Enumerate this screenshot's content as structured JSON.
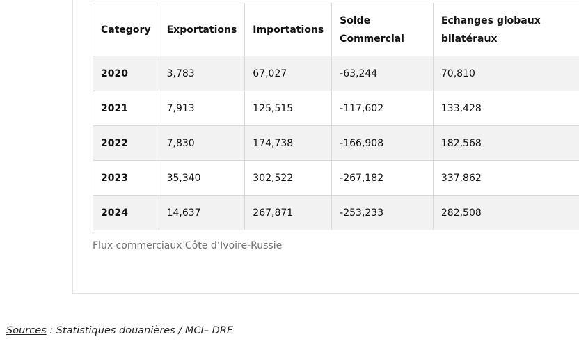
{
  "table": {
    "headers": {
      "category": "Category",
      "exports": "Exportations",
      "imports": "Importations",
      "balance_line1": "Solde",
      "balance_line2": "Commercial",
      "total_line1": "Echanges globaux",
      "total_line2": "bilatéraux"
    },
    "rows": [
      {
        "year": "2020",
        "exports": "3,783",
        "imports": "67,027",
        "balance": "-63,244",
        "total": "70,810"
      },
      {
        "year": "2021",
        "exports": "7,913",
        "imports": "125,515",
        "balance": "-117,602",
        "total": "133,428"
      },
      {
        "year": "2022",
        "exports": "7,830",
        "imports": "174,738",
        "balance": "-166,908",
        "total": "182,568"
      },
      {
        "year": "2023",
        "exports": "35,340",
        "imports": "302,522",
        "balance": "-267,182",
        "total": "337,862"
      },
      {
        "year": "2024",
        "exports": "14,637",
        "imports": "267,871",
        "balance": "-253,233",
        "total": "282,508"
      }
    ]
  },
  "caption": "Flux commerciaux Côte d’Ivoire-Russie",
  "sources": {
    "label": "Sources",
    "text": " : Statistiques douanières / MCI– DRE"
  }
}
